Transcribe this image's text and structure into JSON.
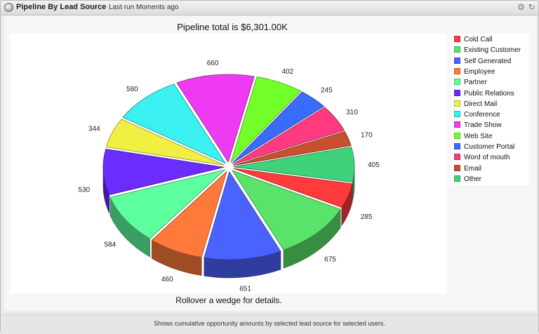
{
  "header": {
    "title": "Pipeline By Lead Source",
    "last_run": "Last run Moments ago",
    "icons": [
      "gear-icon",
      "refresh-icon"
    ]
  },
  "chart_data": {
    "type": "pie",
    "title": "Pipeline total is $6,301.00K",
    "categories": [
      "Cold Call",
      "Existing Customer",
      "Self Generated",
      "Employee",
      "Partner",
      "Public Relations",
      "Direct Mail",
      "Conference",
      "Trade Show",
      "Web Site",
      "Customer Portal",
      "Word of mouth",
      "Email",
      "Other"
    ],
    "values": [
      285,
      675,
      651,
      460,
      584,
      530,
      344,
      580,
      660,
      402,
      245,
      310,
      170,
      405
    ],
    "colors": [
      "#ff3b3b",
      "#5ae36a",
      "#4a63ff",
      "#ff7a3a",
      "#5dff9f",
      "#6a2cff",
      "#f0ef42",
      "#3af0f0",
      "#ee3af0",
      "#72ff2a",
      "#3a6bff",
      "#ff3a7e",
      "#c9502e",
      "#3fd27a"
    ],
    "legend_position": "right"
  },
  "rollover_text": "Rollover a wedge for details.",
  "footer_text": "Shows cumulative opportunity amounts by selected lead source for selected users."
}
